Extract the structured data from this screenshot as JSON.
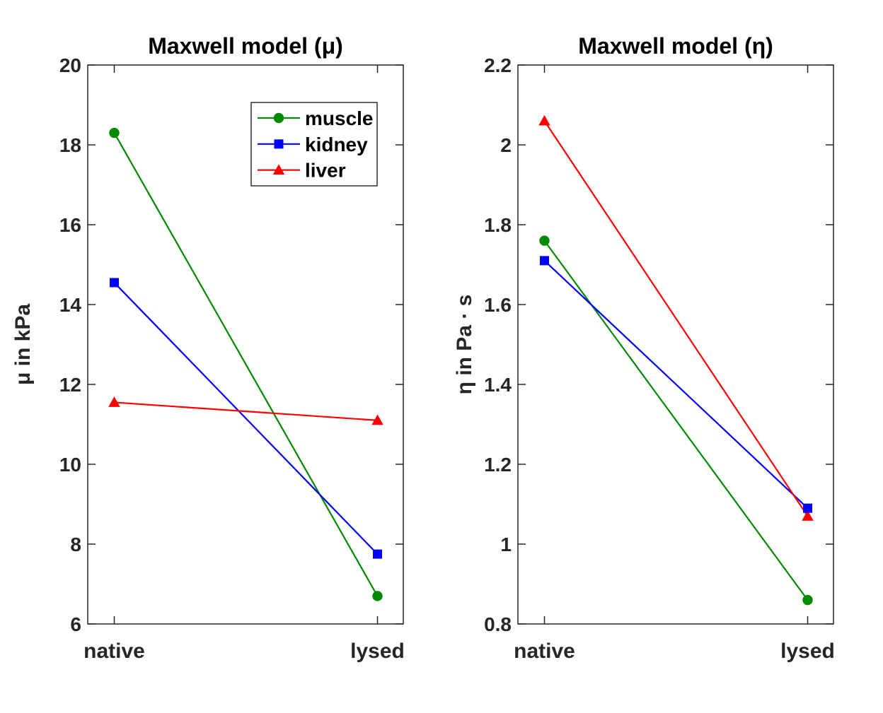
{
  "figure": {
    "background": "#ffffff",
    "text_color": "#262626",
    "title_color": "#000000",
    "axis_color": "#262626"
  },
  "chart_data": [
    {
      "type": "line",
      "title": "Maxwell model (μ)",
      "ylabel": "μ in kPa",
      "categories": [
        "native",
        "lysed"
      ],
      "ylim": [
        6,
        20
      ],
      "yticks": [
        {
          "v": 6,
          "label": "6"
        },
        {
          "v": 8,
          "label": "8"
        },
        {
          "v": 10,
          "label": "10"
        },
        {
          "v": 12,
          "label": "12"
        },
        {
          "v": 14,
          "label": "14"
        },
        {
          "v": 16,
          "label": "16"
        },
        {
          "v": 18,
          "label": "18"
        },
        {
          "v": 20,
          "label": "20"
        }
      ],
      "grid": false,
      "legend": {
        "visible": true,
        "position": "upper-right-inside"
      },
      "series": [
        {
          "name": "muscle",
          "color": "#008A00",
          "marker": "circle",
          "values": [
            18.3,
            6.7
          ]
        },
        {
          "name": "kidney",
          "color": "#0000FF",
          "marker": "square",
          "values": [
            14.55,
            7.75
          ]
        },
        {
          "name": "liver",
          "color": "#FF0000",
          "marker": "triangle",
          "values": [
            11.55,
            11.1
          ]
        }
      ]
    },
    {
      "type": "line",
      "title": "Maxwell model (η)",
      "ylabel": "η in Pa · s",
      "categories": [
        "native",
        "lysed"
      ],
      "ylim": [
        0.8,
        2.2
      ],
      "yticks": [
        {
          "v": 0.8,
          "label": "0.8"
        },
        {
          "v": 1,
          "label": "1"
        },
        {
          "v": 1.2,
          "label": "1.2"
        },
        {
          "v": 1.4,
          "label": "1.4"
        },
        {
          "v": 1.6,
          "label": "1.6"
        },
        {
          "v": 1.8,
          "label": "1.8"
        },
        {
          "v": 2,
          "label": "2"
        },
        {
          "v": 2.2,
          "label": "2.2"
        }
      ],
      "grid": false,
      "legend": {
        "visible": false
      },
      "series": [
        {
          "name": "muscle",
          "color": "#008A00",
          "marker": "circle",
          "values": [
            1.76,
            0.86
          ]
        },
        {
          "name": "kidney",
          "color": "#0000FF",
          "marker": "square",
          "values": [
            1.71,
            1.09
          ]
        },
        {
          "name": "liver",
          "color": "#FF0000",
          "marker": "triangle",
          "values": [
            2.06,
            1.07
          ]
        }
      ]
    }
  ]
}
